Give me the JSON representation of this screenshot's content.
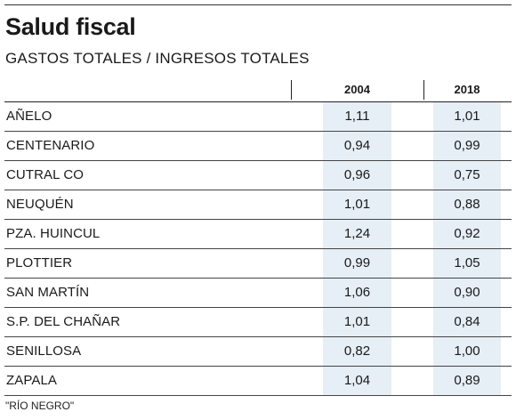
{
  "title": "Salud fiscal",
  "subtitle": "GASTOS TOTALES / INGRESOS TOTALES",
  "columns": [
    "2004",
    "2018"
  ],
  "rows": [
    {
      "name": "AÑELO",
      "v2004": "1,11",
      "v2018": "1,01"
    },
    {
      "name": "CENTENARIO",
      "v2004": "0,94",
      "v2018": "0,99"
    },
    {
      "name": "CUTRAL CO",
      "v2004": "0,96",
      "v2018": "0,75"
    },
    {
      "name": "NEUQUÉN",
      "v2004": "1,01",
      "v2018": "0,88"
    },
    {
      "name": "PZA. HUINCUL",
      "v2004": "1,24",
      "v2018": "0,92"
    },
    {
      "name": "PLOTTIER",
      "v2004": "0,99",
      "v2018": "1,05"
    },
    {
      "name": "SAN MARTÍN",
      "v2004": "1,06",
      "v2018": "0,90"
    },
    {
      "name": "S.P. DEL CHAÑAR",
      "v2004": "1,01",
      "v2018": "0,84"
    },
    {
      "name": "SENILLOSA",
      "v2004": "0,82",
      "v2018": "1,00"
    },
    {
      "name": "ZAPALA",
      "v2004": "1,04",
      "v2018": "0,89"
    }
  ],
  "footer": "\"RÍO NEGRO\"",
  "colors": {
    "cell_bg": "#e6eef6",
    "text": "#1a1a1a"
  }
}
